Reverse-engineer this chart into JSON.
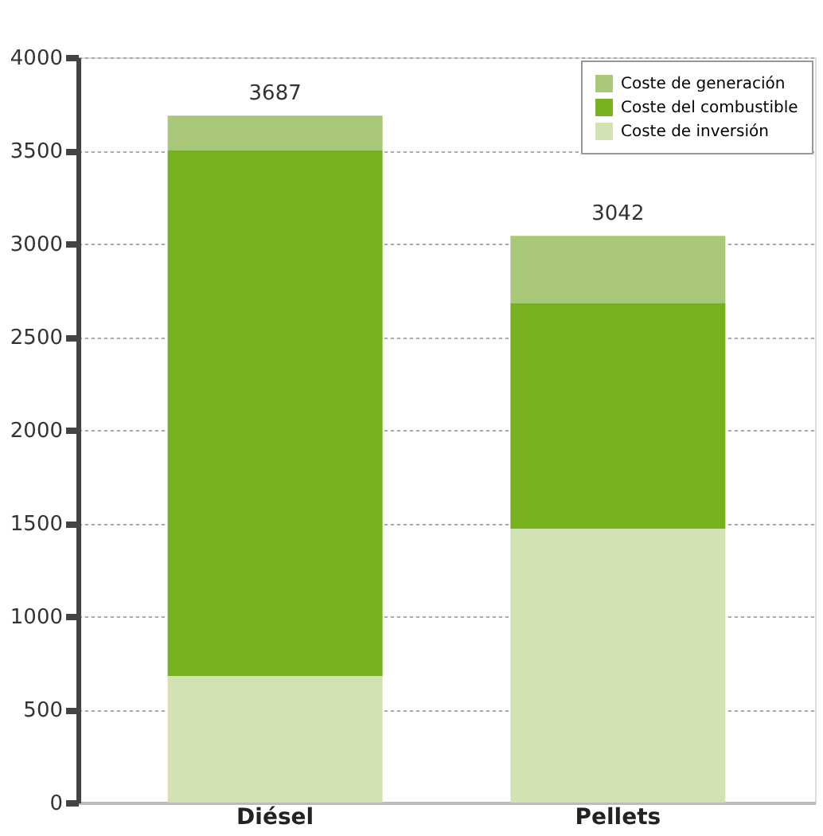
{
  "chart_data": {
    "type": "bar",
    "stacked": true,
    "categories": [
      "Diésel",
      "Pellets"
    ],
    "series": [
      {
        "name": "Coste de inversión",
        "color": "#d3e2b3",
        "values": [
          680,
          1470
        ]
      },
      {
        "name": "Coste del combustible",
        "color": "#76b21e",
        "values": [
          2820,
          1210
        ]
      },
      {
        "name": "Coste de generación",
        "color": "#a9c877",
        "values": [
          187,
          362
        ]
      }
    ],
    "totals": [
      "3687",
      "3042"
    ],
    "ylim": [
      0,
      4000
    ],
    "yticks": [
      0,
      500,
      1000,
      1500,
      2000,
      2500,
      3000,
      3500,
      4000
    ],
    "grid": "y",
    "legend": "top right"
  }
}
